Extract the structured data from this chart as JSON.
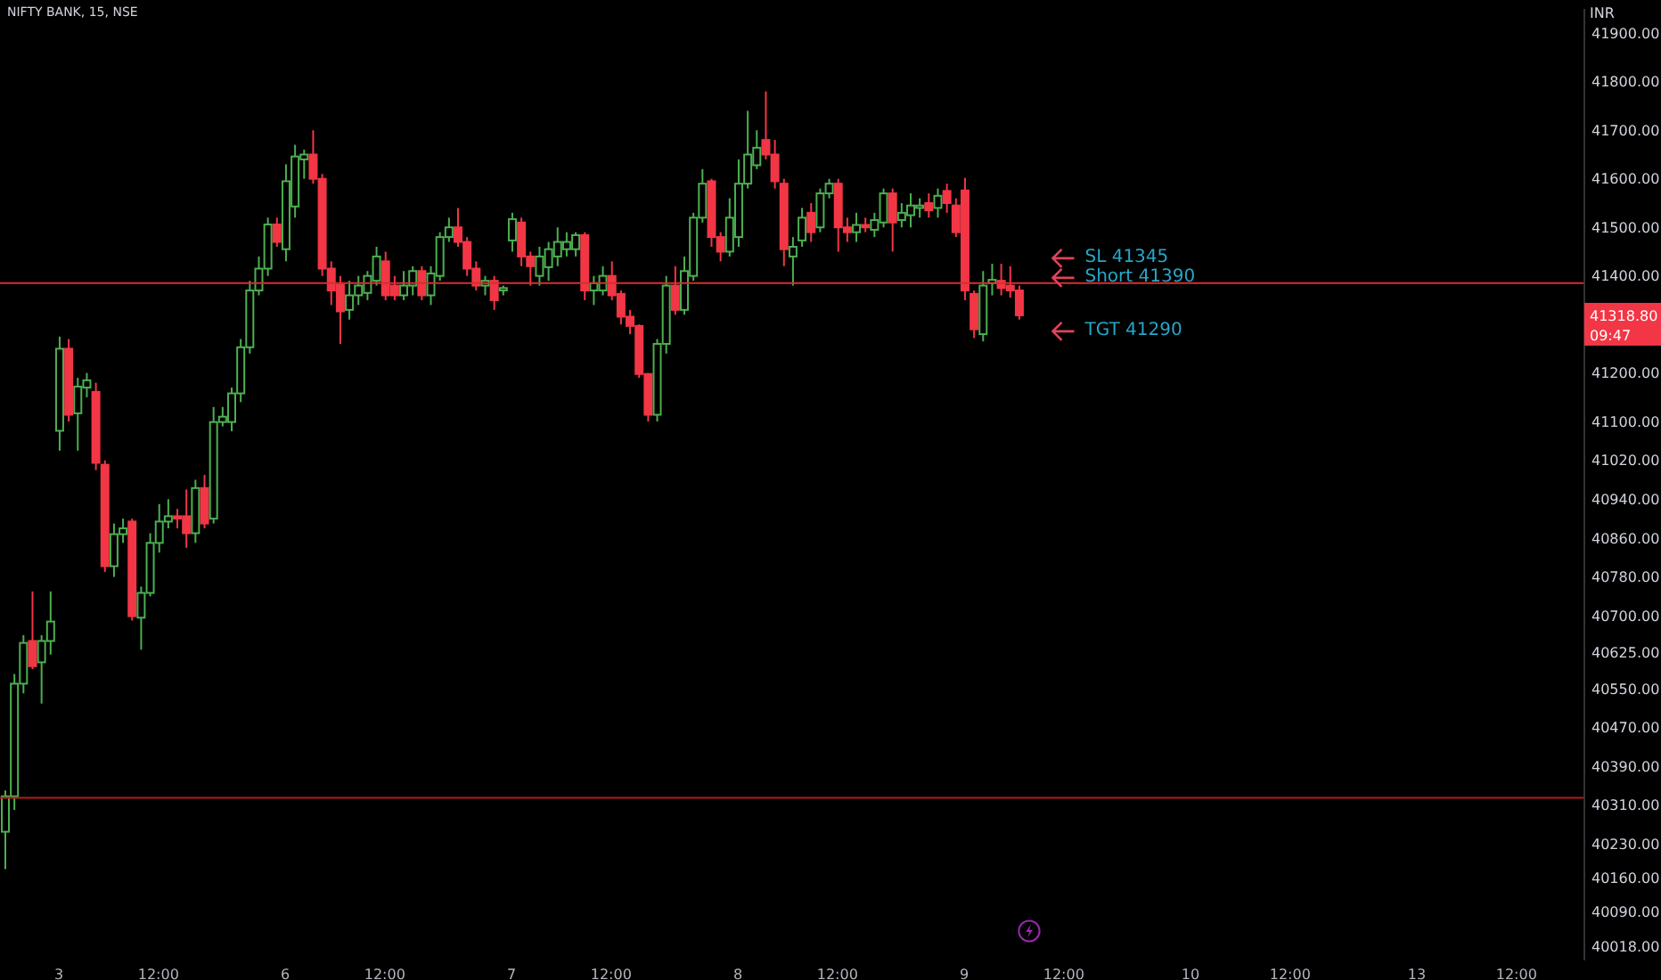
{
  "chart_data": {
    "type": "candlestick",
    "title": "NIFTY BANK, 15, NSE",
    "ylabel": "INR",
    "categories": [
      null,
      null,
      null,
      null,
      null,
      null,
      "3",
      null,
      null,
      null,
      null,
      null,
      null,
      null,
      null,
      null,
      null,
      "12:00",
      null,
      null,
      null,
      null,
      null,
      null,
      null,
      null,
      null,
      null,
      null,
      null,
      null,
      "6",
      null,
      null,
      null,
      null,
      null,
      null,
      null,
      null,
      null,
      null,
      "12:00",
      null,
      null,
      null,
      null,
      null,
      null,
      null,
      null,
      null,
      null,
      null,
      null,
      null,
      "7",
      null,
      null,
      null,
      null,
      null,
      null,
      null,
      null,
      null,
      null,
      "12:00",
      null,
      null,
      null,
      null,
      null,
      null,
      null,
      null,
      null,
      null,
      null,
      null,
      null,
      "8",
      null,
      null,
      null,
      null,
      null,
      null,
      null,
      null,
      null,
      null,
      "12:00",
      null,
      null,
      null,
      null,
      null,
      null,
      null,
      null,
      null,
      null,
      null,
      null,
      null,
      "9",
      null,
      null,
      null,
      null,
      null,
      null,
      null,
      null,
      null,
      null,
      "12:00",
      null,
      null,
      null,
      null,
      null,
      null,
      null,
      null,
      null,
      null,
      null,
      null,
      null,
      "10",
      null,
      null,
      null,
      null,
      null,
      null,
      null,
      null,
      null,
      null,
      "12:00",
      null,
      null,
      null,
      null,
      null,
      null,
      null,
      null,
      null,
      null,
      null,
      null,
      null,
      "13",
      null,
      null,
      null,
      null,
      null,
      null,
      null,
      null,
      null,
      null,
      "12:00",
      null,
      null,
      null,
      null,
      null,
      null,
      null
    ],
    "ohlc": [
      [
        40255,
        40340,
        40178,
        40328
      ],
      [
        40328,
        40580,
        40300,
        40560
      ],
      [
        40560,
        40660,
        40540,
        40644
      ],
      [
        40648,
        40750,
        40590,
        40596
      ],
      [
        40604,
        40660,
        40519,
        40648
      ],
      [
        40648,
        40750,
        40620,
        40688
      ],
      [
        41081,
        41275,
        41040,
        41250
      ],
      [
        41250,
        41270,
        41100,
        41114
      ],
      [
        41117,
        41190,
        41040,
        41172
      ],
      [
        41170,
        41200,
        41150,
        41185
      ],
      [
        41161,
        41180,
        41000,
        41015
      ],
      [
        41011,
        41020,
        40790,
        40802
      ],
      [
        40802,
        40890,
        40780,
        40868
      ],
      [
        40868,
        40900,
        40850,
        40880
      ],
      [
        40894,
        40900,
        40690,
        40699
      ],
      [
        40696,
        40760,
        40630,
        40747
      ],
      [
        40747,
        40870,
        40740,
        40850
      ],
      [
        40850,
        40930,
        40830,
        40894
      ],
      [
        40894,
        40940,
        40880,
        40905
      ],
      [
        40905,
        40920,
        40880,
        40900
      ],
      [
        40905,
        40960,
        40840,
        40870
      ],
      [
        40870,
        40980,
        40850,
        40963
      ],
      [
        40963,
        40990,
        40880,
        40890
      ],
      [
        40900,
        41130,
        40890,
        41099
      ],
      [
        41099,
        41130,
        41090,
        41110
      ],
      [
        41099,
        41170,
        41080,
        41158
      ],
      [
        41158,
        41270,
        41140,
        41253
      ],
      [
        41253,
        41390,
        41240,
        41370
      ],
      [
        41370,
        41440,
        41360,
        41415
      ],
      [
        41415,
        41520,
        41400,
        41506
      ],
      [
        41506,
        41520,
        41460,
        41470
      ],
      [
        41455,
        41630,
        41430,
        41595
      ],
      [
        41543,
        41670,
        41520,
        41646
      ],
      [
        41640,
        41660,
        41600,
        41650
      ],
      [
        41650,
        41700,
        41590,
        41600
      ],
      [
        41600,
        41610,
        41400,
        41415
      ],
      [
        41415,
        41430,
        41340,
        41370
      ],
      [
        41382,
        41400,
        41260,
        41327
      ],
      [
        41330,
        41390,
        41310,
        41360
      ],
      [
        41360,
        41400,
        41340,
        41380
      ],
      [
        41365,
        41410,
        41350,
        41400
      ],
      [
        41390,
        41460,
        41380,
        41440
      ],
      [
        41430,
        41450,
        41350,
        41360
      ],
      [
        41380,
        41400,
        41350,
        41360
      ],
      [
        41360,
        41410,
        41350,
        41380
      ],
      [
        41380,
        41420,
        41360,
        41410
      ],
      [
        41410,
        41420,
        41350,
        41360
      ],
      [
        41360,
        41420,
        41340,
        41405
      ],
      [
        41400,
        41490,
        41390,
        41480
      ],
      [
        41480,
        41520,
        41470,
        41500
      ],
      [
        41500,
        41540,
        41460,
        41470
      ],
      [
        41470,
        41480,
        41400,
        41415
      ],
      [
        41415,
        41430,
        41370,
        41380
      ],
      [
        41380,
        41400,
        41360,
        41390
      ],
      [
        41390,
        41400,
        41330,
        41350
      ],
      [
        41370,
        41380,
        41360,
        41375
      ],
      [
        41473,
        41530,
        41450,
        41517
      ],
      [
        41510,
        41520,
        41420,
        41440
      ],
      [
        41440,
        41450,
        41380,
        41420
      ],
      [
        41400,
        41460,
        41380,
        41440
      ],
      [
        41418,
        41470,
        41390,
        41455
      ],
      [
        41440,
        41500,
        41420,
        41470
      ],
      [
        41455,
        41490,
        41440,
        41470
      ],
      [
        41455,
        41490,
        41440,
        41484
      ],
      [
        41484,
        41490,
        41350,
        41370
      ],
      [
        41370,
        41400,
        41340,
        41385
      ],
      [
        41370,
        41420,
        41360,
        41400
      ],
      [
        41400,
        41430,
        41350,
        41360
      ],
      [
        41363,
        41370,
        41300,
        41316
      ],
      [
        41316,
        41330,
        41280,
        41297
      ],
      [
        41297,
        41300,
        41190,
        41198
      ],
      [
        41198,
        41200,
        41100,
        41114
      ],
      [
        41114,
        41270,
        41100,
        41260
      ],
      [
        41260,
        41400,
        41240,
        41380
      ],
      [
        41380,
        41420,
        41320,
        41330
      ],
      [
        41330,
        41440,
        41320,
        41410
      ],
      [
        41400,
        41530,
        41390,
        41520
      ],
      [
        41520,
        41620,
        41510,
        41590
      ],
      [
        41595,
        41600,
        41460,
        41480
      ],
      [
        41480,
        41490,
        41430,
        41450
      ],
      [
        41450,
        41560,
        41440,
        41520
      ],
      [
        41480,
        41640,
        41460,
        41590
      ],
      [
        41590,
        41740,
        41580,
        41650
      ],
      [
        41628,
        41700,
        41620,
        41664
      ],
      [
        41680,
        41780,
        41640,
        41650
      ],
      [
        41650,
        41680,
        41580,
        41595
      ],
      [
        41590,
        41600,
        41420,
        41455
      ],
      [
        41440,
        41480,
        41380,
        41460
      ],
      [
        41473,
        41540,
        41460,
        41520
      ],
      [
        41530,
        41550,
        41470,
        41490
      ],
      [
        41500,
        41580,
        41490,
        41570
      ],
      [
        41570,
        41600,
        41560,
        41590
      ],
      [
        41590,
        41600,
        41450,
        41500
      ],
      [
        41500,
        41520,
        41470,
        41490
      ],
      [
        41490,
        41530,
        41470,
        41505
      ],
      [
        41505,
        41520,
        41490,
        41500
      ],
      [
        41495,
        41530,
        41480,
        41515
      ],
      [
        41510,
        41580,
        41500,
        41570
      ],
      [
        41570,
        41580,
        41450,
        41510
      ],
      [
        41515,
        41550,
        41500,
        41530
      ],
      [
        41525,
        41570,
        41500,
        41545
      ],
      [
        41540,
        41560,
        41520,
        41545
      ],
      [
        41550,
        41570,
        41520,
        41535
      ],
      [
        41540,
        41580,
        41520,
        41565
      ],
      [
        41575,
        41590,
        41530,
        41550
      ],
      [
        41545,
        41560,
        41480,
        41490
      ],
      [
        41576,
        41602,
        41350,
        41370
      ],
      [
        41363,
        41370,
        41272,
        41290
      ],
      [
        41280,
        41410,
        41265,
        41380
      ],
      [
        41385,
        41425,
        41360,
        41392
      ],
      [
        41390,
        41425,
        41360,
        41375
      ],
      [
        41380,
        41420,
        41355,
        41370
      ],
      [
        41370,
        41380,
        41310,
        41318.8
      ],
      null,
      null,
      null,
      null,
      null,
      null,
      null,
      null,
      null,
      null,
      null,
      null,
      null,
      null,
      null,
      null,
      null,
      null,
      null,
      null,
      null,
      null,
      null,
      null,
      null,
      null,
      null,
      null,
      null,
      null,
      null,
      null,
      null,
      null,
      null,
      null,
      null,
      null,
      null,
      null,
      null,
      null,
      null,
      null,
      null,
      null,
      null,
      null,
      null,
      null,
      null,
      null,
      null,
      null,
      null,
      null,
      null,
      null,
      null,
      null,
      null,
      null
    ],
    "ylim": [
      39990,
      41950
    ],
    "yticks": [
      {
        "value": 41900,
        "label": "41900.00"
      },
      {
        "value": 41800,
        "label": "41800.00"
      },
      {
        "value": 41700,
        "label": "41700.00"
      },
      {
        "value": 41600,
        "label": "41600.00"
      },
      {
        "value": 41500,
        "label": "41500.00"
      },
      {
        "value": 41400,
        "label": "41400.00"
      },
      {
        "value": 41200,
        "label": "41200.00"
      },
      {
        "value": 41100,
        "label": "41100.00"
      },
      {
        "value": 41020,
        "label": "41020.00"
      },
      {
        "value": 40940,
        "label": "40940.00"
      },
      {
        "value": 40860,
        "label": "40860.00"
      },
      {
        "value": 40780,
        "label": "40780.00"
      },
      {
        "value": 40700,
        "label": "40700.00"
      },
      {
        "value": 40625,
        "label": "40625.00"
      },
      {
        "value": 40550,
        "label": "40550.00"
      },
      {
        "value": 40470,
        "label": "40470.00"
      },
      {
        "value": 40390,
        "label": "40390.00"
      },
      {
        "value": 40310,
        "label": "40310.00"
      },
      {
        "value": 40230,
        "label": "40230.00"
      },
      {
        "value": 40160,
        "label": "40160.00"
      },
      {
        "value": 40090,
        "label": "40090.00"
      },
      {
        "value": 40018,
        "label": "40018.00"
      }
    ],
    "ref_lines": [
      {
        "axis": "y",
        "value": 41385,
        "color": "#d32f2f"
      },
      {
        "axis": "y",
        "value": 40325,
        "color": "#b71c1c"
      }
    ],
    "annotations": [
      "SL 41345",
      "Short 41390",
      "TGT 41290",
      "41318.80",
      "09:47"
    ]
  }
}
